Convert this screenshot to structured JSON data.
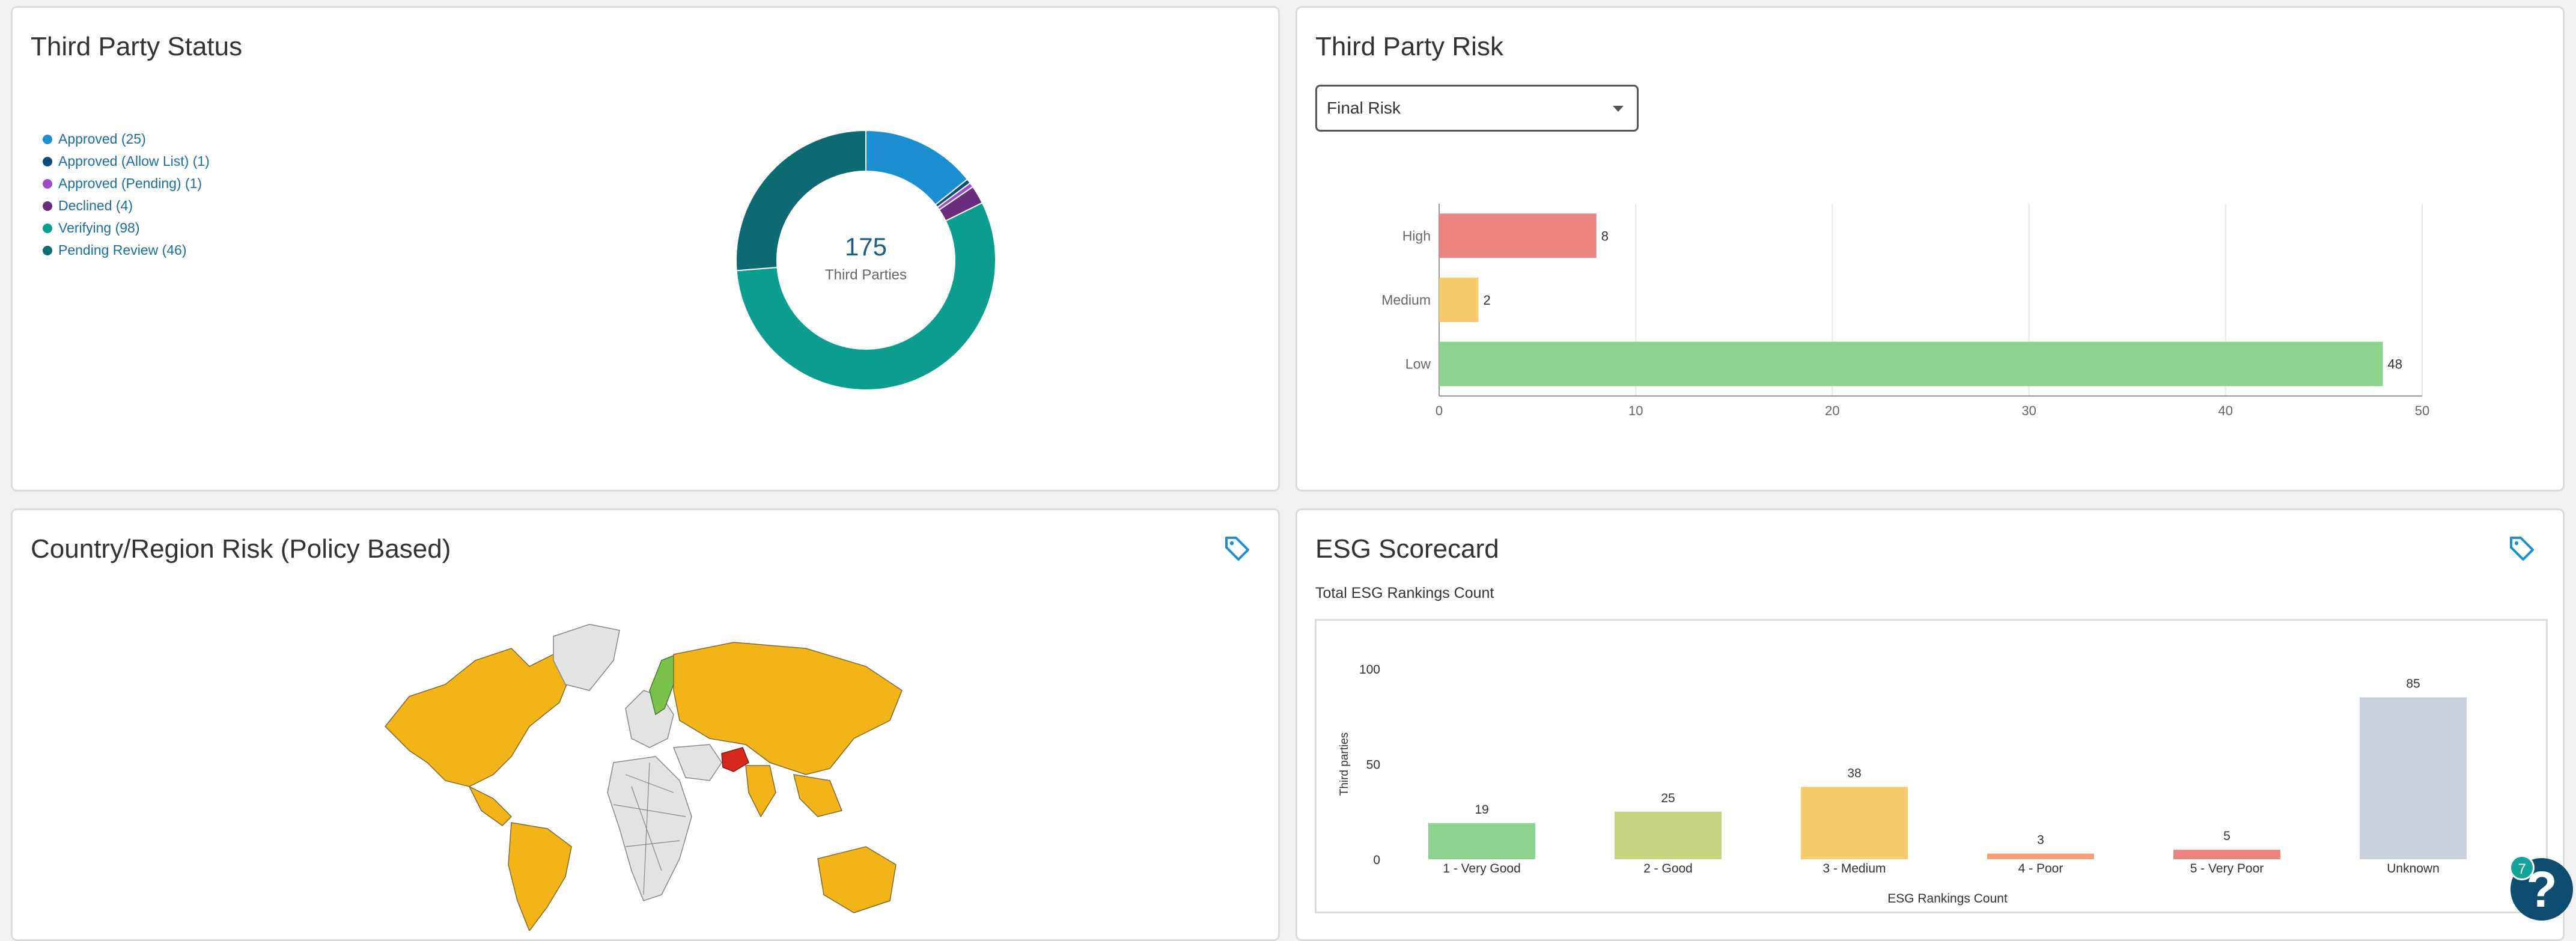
{
  "status_card": {
    "title": "Third Party Status",
    "center_value": "175",
    "center_label": "Third Parties",
    "legend": [
      {
        "label": "Approved (25)",
        "color": "#1b8fd1"
      },
      {
        "label": "Approved (Allow List) (1)",
        "color": "#0e4d7a"
      },
      {
        "label": "Approved (Pending) (1)",
        "color": "#9a4fc7"
      },
      {
        "label": "Declined (4)",
        "color": "#6a2d7e"
      },
      {
        "label": "Verifying (98)",
        "color": "#0b9e8f"
      },
      {
        "label": "Pending Review (46)",
        "color": "#0d6a73"
      }
    ]
  },
  "risk_card": {
    "title": "Third Party Risk",
    "select_value": "Final Risk"
  },
  "country_card": {
    "title": "Country/Region Risk (Policy Based)",
    "tag_icon": "tag-icon",
    "map_colors": {
      "medium": "#f2b417",
      "low": "#7bc24a",
      "high": "#d7281d",
      "unknown": "#e3e3e3"
    }
  },
  "esg_card": {
    "title": "ESG Scorecard",
    "subtitle": "Total ESG Rankings Count",
    "tag_icon": "tag-icon"
  },
  "help": {
    "label": "?",
    "badge": "7"
  },
  "chart_data": [
    {
      "type": "pie",
      "categories": [
        "Approved",
        "Approved (Allow List)",
        "Approved (Pending)",
        "Declined",
        "Verifying",
        "Pending Review"
      ],
      "values": [
        25,
        1,
        1,
        4,
        98,
        46
      ],
      "colors": [
        "#1b8fd1",
        "#0e4d7a",
        "#9a4fc7",
        "#6a2d7e",
        "#0b9e8f",
        "#0d6a73"
      ],
      "donut": true,
      "legend": "left"
    },
    {
      "type": "bar",
      "orientation": "horizontal",
      "categories": [
        "High",
        "Medium",
        "Low"
      ],
      "values": [
        8,
        2,
        48
      ],
      "colors": [
        "#ec8581",
        "#f6cb6e",
        "#8dd38d"
      ],
      "xlim": [
        0,
        50
      ],
      "xticks": [
        0,
        10,
        20,
        30,
        40,
        50
      ],
      "grid": true
    },
    {
      "type": "bar",
      "categories": [
        "1 - Very Good",
        "2 - Good",
        "3 - Medium",
        "4 - Poor",
        "5 - Very Poor",
        "Unknown"
      ],
      "values": [
        19,
        25,
        38,
        3,
        5,
        85
      ],
      "colors": [
        "#8dd38d",
        "#c6d47e",
        "#f6cb6e",
        "#f4a07a",
        "#ec8581",
        "#c8d1dc"
      ],
      "xlabel": "ESG Rankings Count",
      "ylabel": "Third parties",
      "ylim": [
        0,
        100
      ],
      "yticks": [
        0,
        50,
        100
      ]
    }
  ]
}
